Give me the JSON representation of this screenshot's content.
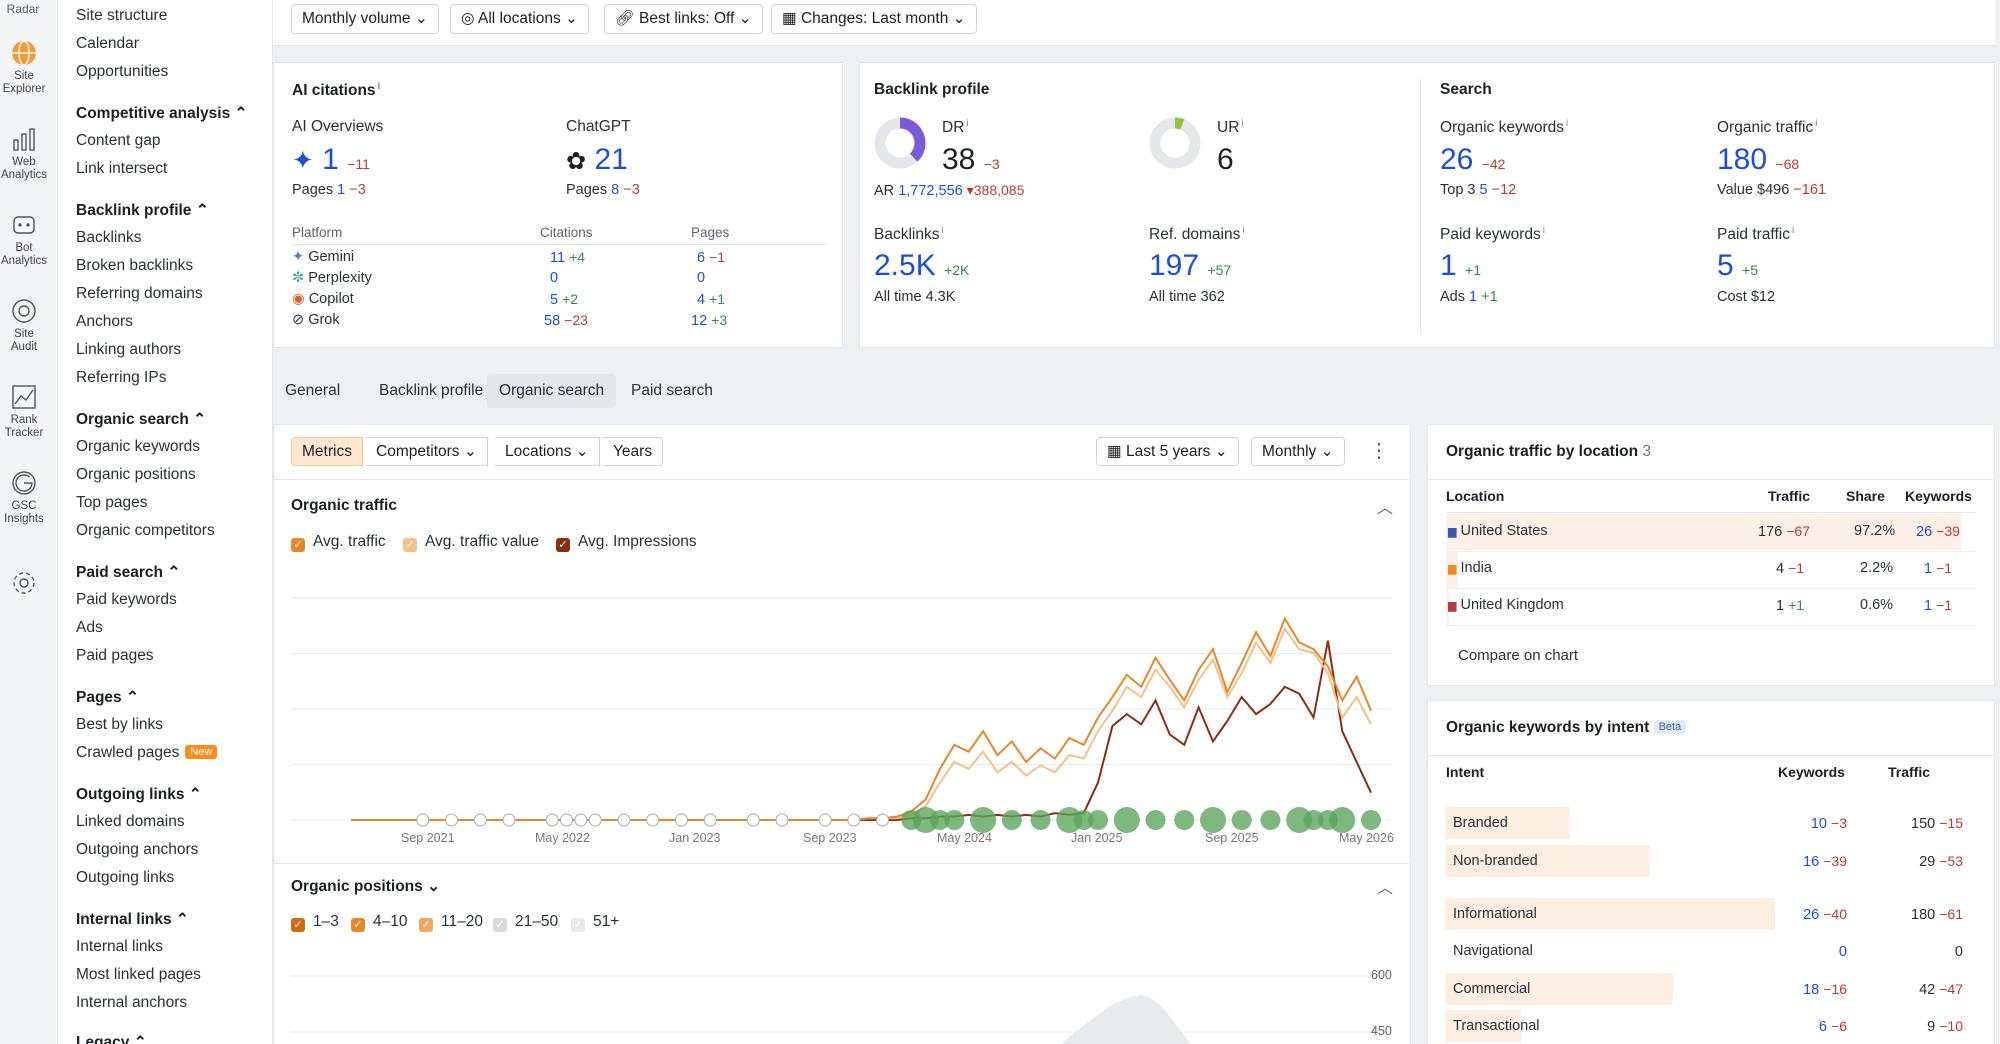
{
  "rail": {
    "top_label": "Radar",
    "items": [
      {
        "label": "Site Explorer",
        "icon": "globe-icon"
      },
      {
        "label": "Web Analytics",
        "icon": "bars-icon"
      },
      {
        "label": "Bot Analytics",
        "icon": "bot-icon"
      },
      {
        "label": "Site Audit",
        "icon": "audit-icon"
      },
      {
        "label": "Rank Tracker",
        "icon": "rank-icon"
      },
      {
        "label": "GSC Insights",
        "icon": "google-icon"
      },
      {
        "label": "",
        "icon": "gear-icon"
      }
    ]
  },
  "nav": {
    "links_top": [
      "Site structure",
      "Calendar",
      "Opportunities"
    ],
    "sections": [
      {
        "title": "Competitive analysis",
        "items": [
          "Content gap",
          "Link intersect"
        ]
      },
      {
        "title": "Backlink profile",
        "items": [
          "Backlinks",
          "Broken backlinks",
          "Referring domains",
          "Anchors",
          "Linking authors",
          "Referring IPs"
        ]
      },
      {
        "title": "Organic search",
        "items": [
          "Organic keywords",
          "Organic positions",
          "Top pages",
          "Organic competitors"
        ]
      },
      {
        "title": "Paid search",
        "items": [
          "Paid keywords",
          "Ads",
          "Paid pages"
        ]
      },
      {
        "title": "Pages",
        "items": [
          "Best by links",
          "Crawled pages"
        ]
      },
      {
        "title": "Outgoing links",
        "items": [
          "Linked domains",
          "Outgoing anchors",
          "Outgoing links"
        ]
      },
      {
        "title": "Internal links",
        "items": [
          "Internal links",
          "Most linked pages",
          "Internal anchors"
        ]
      },
      {
        "title": "Legacy",
        "items": []
      }
    ],
    "new_badge": "New"
  },
  "filters": [
    "Monthly volume",
    "All locations",
    "Best links: Off",
    "Changes: Last month"
  ],
  "ai": {
    "title": "AI citations",
    "overviews_label": "AI Overviews",
    "overviews_value": "1",
    "overviews_delta": "−11",
    "overviews_pages_label": "Pages",
    "overviews_pages": "1",
    "overviews_pages_delta": "−3",
    "chatgpt_label": "ChatGPT",
    "chatgpt_value": "21",
    "chatgpt_pages_label": "Pages",
    "chatgpt_pages": "8",
    "chatgpt_pages_delta": "−3",
    "col_platform": "Platform",
    "col_citations": "Citations",
    "col_pages": "Pages",
    "rows": [
      {
        "name": "Gemini",
        "cit": "11",
        "cit_d": "+4",
        "pg": "6",
        "pg_d": "−1"
      },
      {
        "name": "Perplexity",
        "cit": "0",
        "cit_d": "",
        "pg": "0",
        "pg_d": ""
      },
      {
        "name": "Copilot",
        "cit": "5",
        "cit_d": "+2",
        "pg": "4",
        "pg_d": "+1"
      },
      {
        "name": "Grok",
        "cit": "58",
        "cit_d": "−23",
        "pg": "12",
        "pg_d": "+3"
      }
    ]
  },
  "backlink": {
    "title": "Backlink profile",
    "dr_label": "DR",
    "dr_value": "38",
    "dr_delta": "−3",
    "dr_fraction": 0.38,
    "ar_label": "AR",
    "ar_value": "1,772,556",
    "ar_delta": "▾388,085",
    "ur_label": "UR",
    "ur_value": "6",
    "ur_fraction": 0.06,
    "backlinks_label": "Backlinks",
    "backlinks_value": "2.5K",
    "backlinks_delta": "+2K",
    "backlinks_all_label": "All time",
    "backlinks_all": "4.3K",
    "refdom_label": "Ref. domains",
    "refdom_value": "197",
    "refdom_delta": "+57",
    "refdom_all_label": "All time",
    "refdom_all": "362"
  },
  "search": {
    "title": "Search",
    "ok_label": "Organic keywords",
    "ok_value": "26",
    "ok_delta": "−42",
    "ok_top_label": "Top 3",
    "ok_top": "5",
    "ok_top_delta": "−12",
    "ot_label": "Organic traffic",
    "ot_value": "180",
    "ot_delta": "−68",
    "ot_value_label": "Value",
    "ot_value_amt": "$496",
    "ot_value_delta": "−161",
    "pk_label": "Paid keywords",
    "pk_value": "1",
    "pk_delta": "+1",
    "pk_ads_label": "Ads",
    "pk_ads": "1",
    "pk_ads_delta": "+1",
    "pt_label": "Paid traffic",
    "pt_value": "5",
    "pt_delta": "+5",
    "pt_cost_label": "Cost",
    "pt_cost": "$12"
  },
  "tabs": [
    "General",
    "Backlink profile",
    "Organic search",
    "Paid search"
  ],
  "toolbar": {
    "segments": [
      "Metrics",
      "Competitors",
      "Locations",
      "Years"
    ],
    "range": "Last 5 years",
    "interval": "Monthly"
  },
  "traffic_chart": {
    "title": "Organic traffic",
    "legend": [
      "Avg. traffic",
      "Avg. traffic value",
      "Avg. Impressions"
    ]
  },
  "chart_data": {
    "type": "line",
    "x_ticks": [
      "Sep 2021",
      "May 2022",
      "Jan 2023",
      "Sep 2023",
      "May 2024",
      "Jan 2025",
      "Sep 2025",
      "May 2026"
    ],
    "series": [
      {
        "name": "Avg. traffic",
        "color": "#e8872a",
        "values": [
          0,
          0,
          0,
          0,
          0,
          0,
          0,
          0,
          0,
          0,
          0,
          0,
          0,
          0,
          0,
          0,
          0,
          0,
          0,
          0,
          0,
          0,
          0,
          0,
          0,
          0,
          0,
          0,
          0,
          0,
          0,
          0,
          0,
          0,
          0,
          0,
          1,
          1,
          2,
          5,
          12,
          30,
          44,
          40,
          52,
          38,
          46,
          34,
          42,
          36,
          48,
          44,
          60,
          72,
          85,
          78,
          95,
          82,
          70,
          88,
          100,
          75,
          92,
          110,
          96,
          118,
          104,
          100,
          90,
          70,
          84,
          64
        ]
      },
      {
        "name": "Avg. traffic value",
        "color": "#f5c08a",
        "values": [
          0,
          0,
          0,
          0,
          0,
          0,
          0,
          0,
          0,
          0,
          0,
          0,
          0,
          0,
          0,
          0,
          0,
          0,
          0,
          0,
          0,
          0,
          0,
          0,
          0,
          0,
          0,
          0,
          0,
          0,
          0,
          0,
          0,
          0,
          0,
          0,
          1,
          1,
          1,
          3,
          8,
          22,
          34,
          30,
          40,
          28,
          34,
          26,
          32,
          28,
          38,
          36,
          52,
          64,
          78,
          72,
          88,
          78,
          66,
          82,
          94,
          72,
          86,
          104,
          92,
          112,
          100,
          98,
          86,
          60,
          72,
          56
        ]
      },
      {
        "name": "Avg. Impressions",
        "color": "#8a2e12",
        "values": [
          0,
          0,
          0,
          0,
          0,
          0,
          0,
          0,
          0,
          0,
          0,
          0,
          0,
          0,
          0,
          0,
          0,
          0,
          0,
          0,
          0,
          0,
          0,
          0,
          0,
          0,
          0,
          0,
          0,
          0,
          0,
          0,
          0,
          0,
          0,
          0,
          0,
          0,
          0,
          1,
          1,
          2,
          2,
          3,
          2,
          3,
          2,
          3,
          2,
          4,
          3,
          4,
          22,
          55,
          62,
          56,
          70,
          50,
          44,
          66,
          46,
          58,
          72,
          62,
          68,
          78,
          74,
          60,
          105,
          52,
          34,
          16
        ]
      }
    ],
    "ylim": [
      0,
      130
    ]
  },
  "positions_chart": {
    "title": "Organic positions",
    "legend": [
      "1–3",
      "4–10",
      "11–20",
      "21–50",
      "51+"
    ],
    "y_ticks": [
      "600",
      "450"
    ]
  },
  "location": {
    "title": "Organic traffic by location",
    "count": "3",
    "col_location": "Location",
    "col_traffic": "Traffic",
    "col_share": "Share",
    "col_keywords": "Keywords",
    "rows": [
      {
        "country": "United States",
        "flag": "us-flag-icon",
        "traffic": "176",
        "traffic_d": "−67",
        "share": "97.2%",
        "kw": "26",
        "kw_d": "−39",
        "share_fraction": 0.972
      },
      {
        "country": "India",
        "flag": "india-flag-icon",
        "traffic": "4",
        "traffic_d": "−1",
        "share": "2.2%",
        "kw": "1",
        "kw_d": "−1",
        "share_fraction": 0.022
      },
      {
        "country": "United Kingdom",
        "flag": "uk-flag-icon",
        "traffic": "1",
        "traffic_d": "+1",
        "share": "0.6%",
        "kw": "1",
        "kw_d": "−1",
        "share_fraction": 0.006
      }
    ],
    "compare": "Compare on chart"
  },
  "intent": {
    "title": "Organic keywords by intent",
    "beta": "Beta",
    "col_intent": "Intent",
    "col_keywords": "Keywords",
    "col_traffic": "Traffic",
    "rows": [
      {
        "name": "Branded",
        "kw": "10",
        "kw_d": "−3",
        "tr": "150",
        "tr_d": "−15",
        "fraction": 0.38
      },
      {
        "name": "Non-branded",
        "kw": "16",
        "kw_d": "−39",
        "tr": "29",
        "tr_d": "−53",
        "fraction": 0.62
      },
      {
        "name": "Informational",
        "kw": "26",
        "kw_d": "−40",
        "tr": "180",
        "tr_d": "−61",
        "fraction": 1.0
      },
      {
        "name": "Navigational",
        "kw": "0",
        "kw_d": "",
        "tr": "0",
        "tr_d": "",
        "fraction": 0
      },
      {
        "name": "Commercial",
        "kw": "18",
        "kw_d": "−16",
        "tr": "42",
        "tr_d": "−47",
        "fraction": 0.69
      },
      {
        "name": "Transactional",
        "kw": "6",
        "kw_d": "−6",
        "tr": "9",
        "tr_d": "−10",
        "fraction": 0.23
      }
    ]
  }
}
